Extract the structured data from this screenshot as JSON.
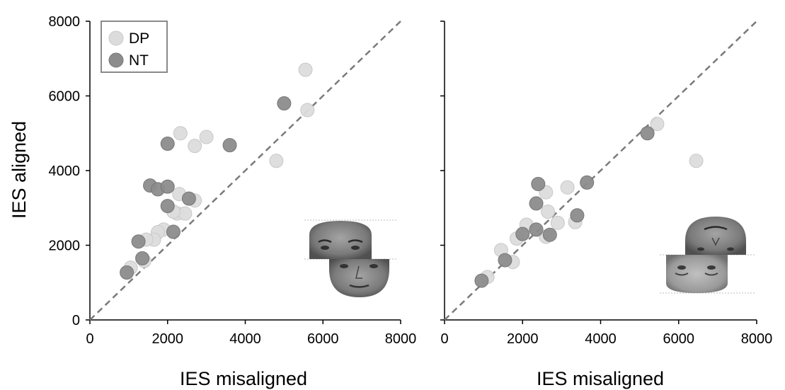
{
  "chart_data": [
    {
      "type": "scatter",
      "panel": "left",
      "xlabel": "IES misaligned",
      "ylabel": "IES aligned",
      "xlim": [
        0,
        8000
      ],
      "ylim": [
        0,
        8000
      ],
      "xticks": [
        "0",
        "2000",
        "4000",
        "6000",
        "8000"
      ],
      "yticks": [
        "0",
        "2000",
        "4000",
        "6000",
        "8000"
      ],
      "reference_line": "diagonal y = x, dashed",
      "legend": {
        "placement": "top-left",
        "entries": [
          {
            "label": "DP",
            "color": "#dcdcdc"
          },
          {
            "label": "NT",
            "color": "#8c8c8c"
          }
        ]
      },
      "series": [
        {
          "name": "DP",
          "color": "#dcdcdc",
          "points": [
            [
              5550,
              6700
            ],
            [
              5600,
              5620
            ],
            [
              4800,
              4260
            ],
            [
              3000,
              4900
            ],
            [
              2700,
              4660
            ],
            [
              2330,
              5000
            ],
            [
              2300,
              3370
            ],
            [
              2700,
              3200
            ],
            [
              2250,
              2850
            ],
            [
              2450,
              2850
            ],
            [
              2150,
              2900
            ],
            [
              1900,
              2420
            ],
            [
              1750,
              2350
            ],
            [
              1650,
              2150
            ],
            [
              1450,
              2150
            ],
            [
              1400,
              1580
            ],
            [
              1050,
              1400
            ]
          ]
        },
        {
          "name": "NT",
          "color": "#8c8c8c",
          "points": [
            [
              5000,
              5800
            ],
            [
              3600,
              4680
            ],
            [
              2000,
              4720
            ],
            [
              1550,
              3600
            ],
            [
              1750,
              3500
            ],
            [
              2000,
              3570
            ],
            [
              2000,
              3050
            ],
            [
              2550,
              3250
            ],
            [
              2150,
              2360
            ],
            [
              1250,
              2100
            ],
            [
              1350,
              1650
            ],
            [
              950,
              1270
            ]
          ]
        }
      ],
      "inset": "aligned composite face (upright)"
    },
    {
      "type": "scatter",
      "panel": "right",
      "xlabel": "IES misaligned",
      "ylabel": "",
      "xlim": [
        0,
        8000
      ],
      "ylim": [
        0,
        8000
      ],
      "xticks": [
        "0",
        "2000",
        "4000",
        "6000",
        "8000"
      ],
      "reference_line": "diagonal y = x, dashed",
      "series": [
        {
          "name": "DP",
          "color": "#dcdcdc",
          "points": [
            [
              5450,
              5250
            ],
            [
              6450,
              4260
            ],
            [
              3150,
              3550
            ],
            [
              2600,
              3420
            ],
            [
              2650,
              2900
            ],
            [
              2900,
              2600
            ],
            [
              3350,
              2620
            ],
            [
              2600,
              2230
            ],
            [
              2100,
              2550
            ],
            [
              1850,
              2180
            ],
            [
              1750,
              1550
            ],
            [
              1450,
              1870
            ],
            [
              1100,
              1150
            ]
          ]
        },
        {
          "name": "NT",
          "color": "#8c8c8c",
          "points": [
            [
              5200,
              5000
            ],
            [
              3650,
              3680
            ],
            [
              2400,
              3640
            ],
            [
              2350,
              3120
            ],
            [
              3400,
              2800
            ],
            [
              2350,
              2420
            ],
            [
              2000,
              2300
            ],
            [
              2700,
              2280
            ],
            [
              1550,
              1600
            ],
            [
              950,
              1050
            ]
          ]
        }
      ],
      "inset": "misaligned composite face (inverted)"
    }
  ]
}
